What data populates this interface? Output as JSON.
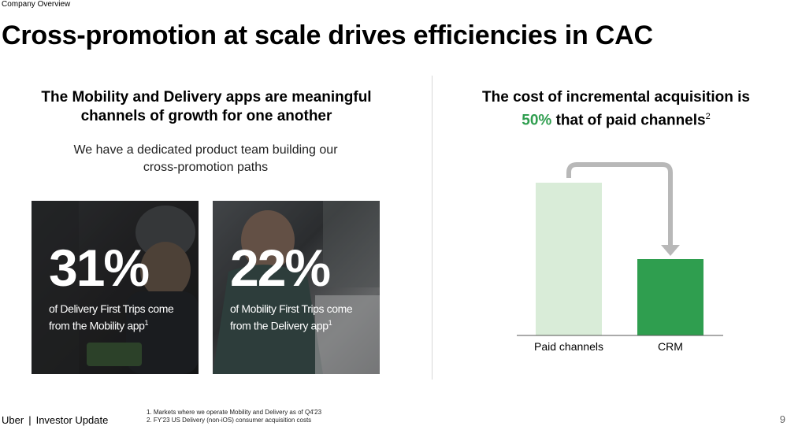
{
  "header": {
    "breadcrumb": "Company Overview",
    "title": "Cross-promotion at scale drives efficiencies in CAC"
  },
  "left": {
    "heading_line1": "The Mobility and Delivery apps are meaningful",
    "heading_line2": "channels of growth for one another",
    "sub_line1": "We have a dedicated product team building our",
    "sub_line2": "cross-promotion paths",
    "cards": [
      {
        "value": "31%",
        "desc_line1": "of Delivery First Trips come",
        "desc_line2": "from the Mobility app",
        "footnote": "1"
      },
      {
        "value": "22%",
        "desc_line1": "of Mobility First Trips come",
        "desc_line2": "from the Delivery app",
        "footnote": "1"
      }
    ]
  },
  "right": {
    "heading_line1": "The cost of incremental acquisition is",
    "heading_highlight": "50%",
    "heading_line2_rest": " that of paid channels",
    "heading_footnote": "2"
  },
  "chart_data": {
    "type": "bar",
    "categories": [
      "Paid channels",
      "CRM"
    ],
    "values": [
      100,
      50
    ],
    "colors": [
      "#d9ecd8",
      "#2f9e4f"
    ],
    "arrow_color": "#b8b8b8",
    "ylim": [
      0,
      100
    ],
    "grid": false
  },
  "footer": {
    "brand": "Uber",
    "separator": "|",
    "label": "Investor Update",
    "footnote1": "1. Markets where we operate Mobility and Delivery as of Q4'23",
    "footnote2": "2. FY'23 US Delivery (non-iOS) consumer acquisition costs",
    "page_number": "9"
  }
}
